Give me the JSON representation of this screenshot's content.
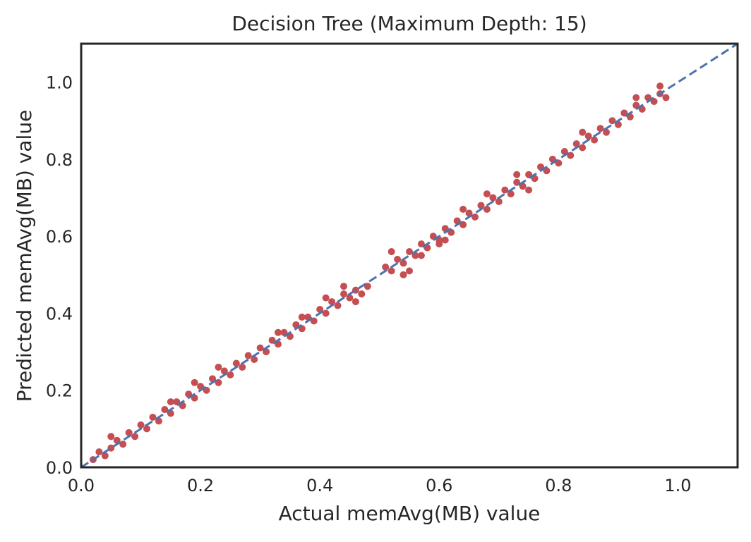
{
  "chart_data": {
    "type": "scatter",
    "title": "Decision Tree (Maximum Depth: 15)",
    "xlabel": "Actual memAvg(MB) value",
    "ylabel": "Predicted memAvg(MB) value",
    "xlim": [
      0.0,
      1.1
    ],
    "ylim": [
      0.0,
      1.1
    ],
    "xticks": [
      "0.0",
      "0.2",
      "0.4",
      "0.6",
      "0.8",
      "1.0"
    ],
    "yticks": [
      "0.0",
      "0.2",
      "0.4",
      "0.6",
      "0.8",
      "1.0"
    ],
    "grid": false,
    "legend": "none",
    "series": [
      {
        "marker_color": "#c44e52",
        "points": [
          [
            0.02,
            0.02
          ],
          [
            0.03,
            0.04
          ],
          [
            0.04,
            0.03
          ],
          [
            0.05,
            0.05
          ],
          [
            0.06,
            0.07
          ],
          [
            0.07,
            0.06
          ],
          [
            0.08,
            0.09
          ],
          [
            0.09,
            0.08
          ],
          [
            0.1,
            0.11
          ],
          [
            0.11,
            0.1
          ],
          [
            0.12,
            0.13
          ],
          [
            0.13,
            0.12
          ],
          [
            0.14,
            0.15
          ],
          [
            0.15,
            0.14
          ],
          [
            0.16,
            0.17
          ],
          [
            0.17,
            0.16
          ],
          [
            0.18,
            0.19
          ],
          [
            0.19,
            0.18
          ],
          [
            0.2,
            0.21
          ],
          [
            0.21,
            0.2
          ],
          [
            0.22,
            0.23
          ],
          [
            0.23,
            0.22
          ],
          [
            0.24,
            0.25
          ],
          [
            0.25,
            0.24
          ],
          [
            0.26,
            0.27
          ],
          [
            0.27,
            0.26
          ],
          [
            0.28,
            0.29
          ],
          [
            0.29,
            0.28
          ],
          [
            0.3,
            0.31
          ],
          [
            0.31,
            0.3
          ],
          [
            0.32,
            0.33
          ],
          [
            0.33,
            0.32
          ],
          [
            0.34,
            0.35
          ],
          [
            0.35,
            0.34
          ],
          [
            0.36,
            0.37
          ],
          [
            0.37,
            0.36
          ],
          [
            0.38,
            0.39
          ],
          [
            0.39,
            0.38
          ],
          [
            0.4,
            0.41
          ],
          [
            0.41,
            0.4
          ],
          [
            0.42,
            0.43
          ],
          [
            0.43,
            0.42
          ],
          [
            0.44,
            0.45
          ],
          [
            0.45,
            0.44
          ],
          [
            0.46,
            0.46
          ],
          [
            0.47,
            0.45
          ],
          [
            0.48,
            0.47
          ],
          [
            0.44,
            0.47
          ],
          [
            0.46,
            0.43
          ],
          [
            0.37,
            0.39
          ],
          [
            0.41,
            0.44
          ],
          [
            0.33,
            0.35
          ],
          [
            0.23,
            0.26
          ],
          [
            0.19,
            0.22
          ],
          [
            0.15,
            0.17
          ],
          [
            0.05,
            0.08
          ],
          [
            0.51,
            0.52
          ],
          [
            0.52,
            0.51
          ],
          [
            0.53,
            0.54
          ],
          [
            0.54,
            0.53
          ],
          [
            0.55,
            0.56
          ],
          [
            0.56,
            0.55
          ],
          [
            0.57,
            0.58
          ],
          [
            0.58,
            0.57
          ],
          [
            0.59,
            0.6
          ],
          [
            0.6,
            0.59
          ],
          [
            0.61,
            0.62
          ],
          [
            0.62,
            0.61
          ],
          [
            0.63,
            0.64
          ],
          [
            0.64,
            0.63
          ],
          [
            0.65,
            0.66
          ],
          [
            0.66,
            0.65
          ],
          [
            0.67,
            0.68
          ],
          [
            0.68,
            0.67
          ],
          [
            0.69,
            0.7
          ],
          [
            0.7,
            0.69
          ],
          [
            0.71,
            0.72
          ],
          [
            0.72,
            0.71
          ],
          [
            0.73,
            0.74
          ],
          [
            0.74,
            0.73
          ],
          [
            0.75,
            0.76
          ],
          [
            0.76,
            0.75
          ],
          [
            0.77,
            0.78
          ],
          [
            0.78,
            0.77
          ],
          [
            0.79,
            0.8
          ],
          [
            0.8,
            0.79
          ],
          [
            0.81,
            0.82
          ],
          [
            0.82,
            0.81
          ],
          [
            0.83,
            0.84
          ],
          [
            0.84,
            0.83
          ],
          [
            0.85,
            0.86
          ],
          [
            0.86,
            0.85
          ],
          [
            0.87,
            0.88
          ],
          [
            0.88,
            0.87
          ],
          [
            0.89,
            0.9
          ],
          [
            0.9,
            0.89
          ],
          [
            0.91,
            0.92
          ],
          [
            0.92,
            0.91
          ],
          [
            0.93,
            0.94
          ],
          [
            0.94,
            0.93
          ],
          [
            0.95,
            0.96
          ],
          [
            0.96,
            0.95
          ],
          [
            0.97,
            0.97
          ],
          [
            0.98,
            0.96
          ],
          [
            0.52,
            0.56
          ],
          [
            0.55,
            0.51
          ],
          [
            0.57,
            0.55
          ],
          [
            0.61,
            0.59
          ],
          [
            0.68,
            0.71
          ],
          [
            0.73,
            0.76
          ],
          [
            0.75,
            0.72
          ],
          [
            0.84,
            0.87
          ],
          [
            0.93,
            0.96
          ],
          [
            0.97,
            0.99
          ],
          [
            0.64,
            0.67
          ],
          [
            0.6,
            0.58
          ],
          [
            0.54,
            0.5
          ]
        ]
      }
    ],
    "reference_line": {
      "style": "dashed",
      "color": "#4c72b0",
      "from": [
        0.0,
        0.0
      ],
      "to": [
        1.1,
        1.1
      ]
    }
  }
}
